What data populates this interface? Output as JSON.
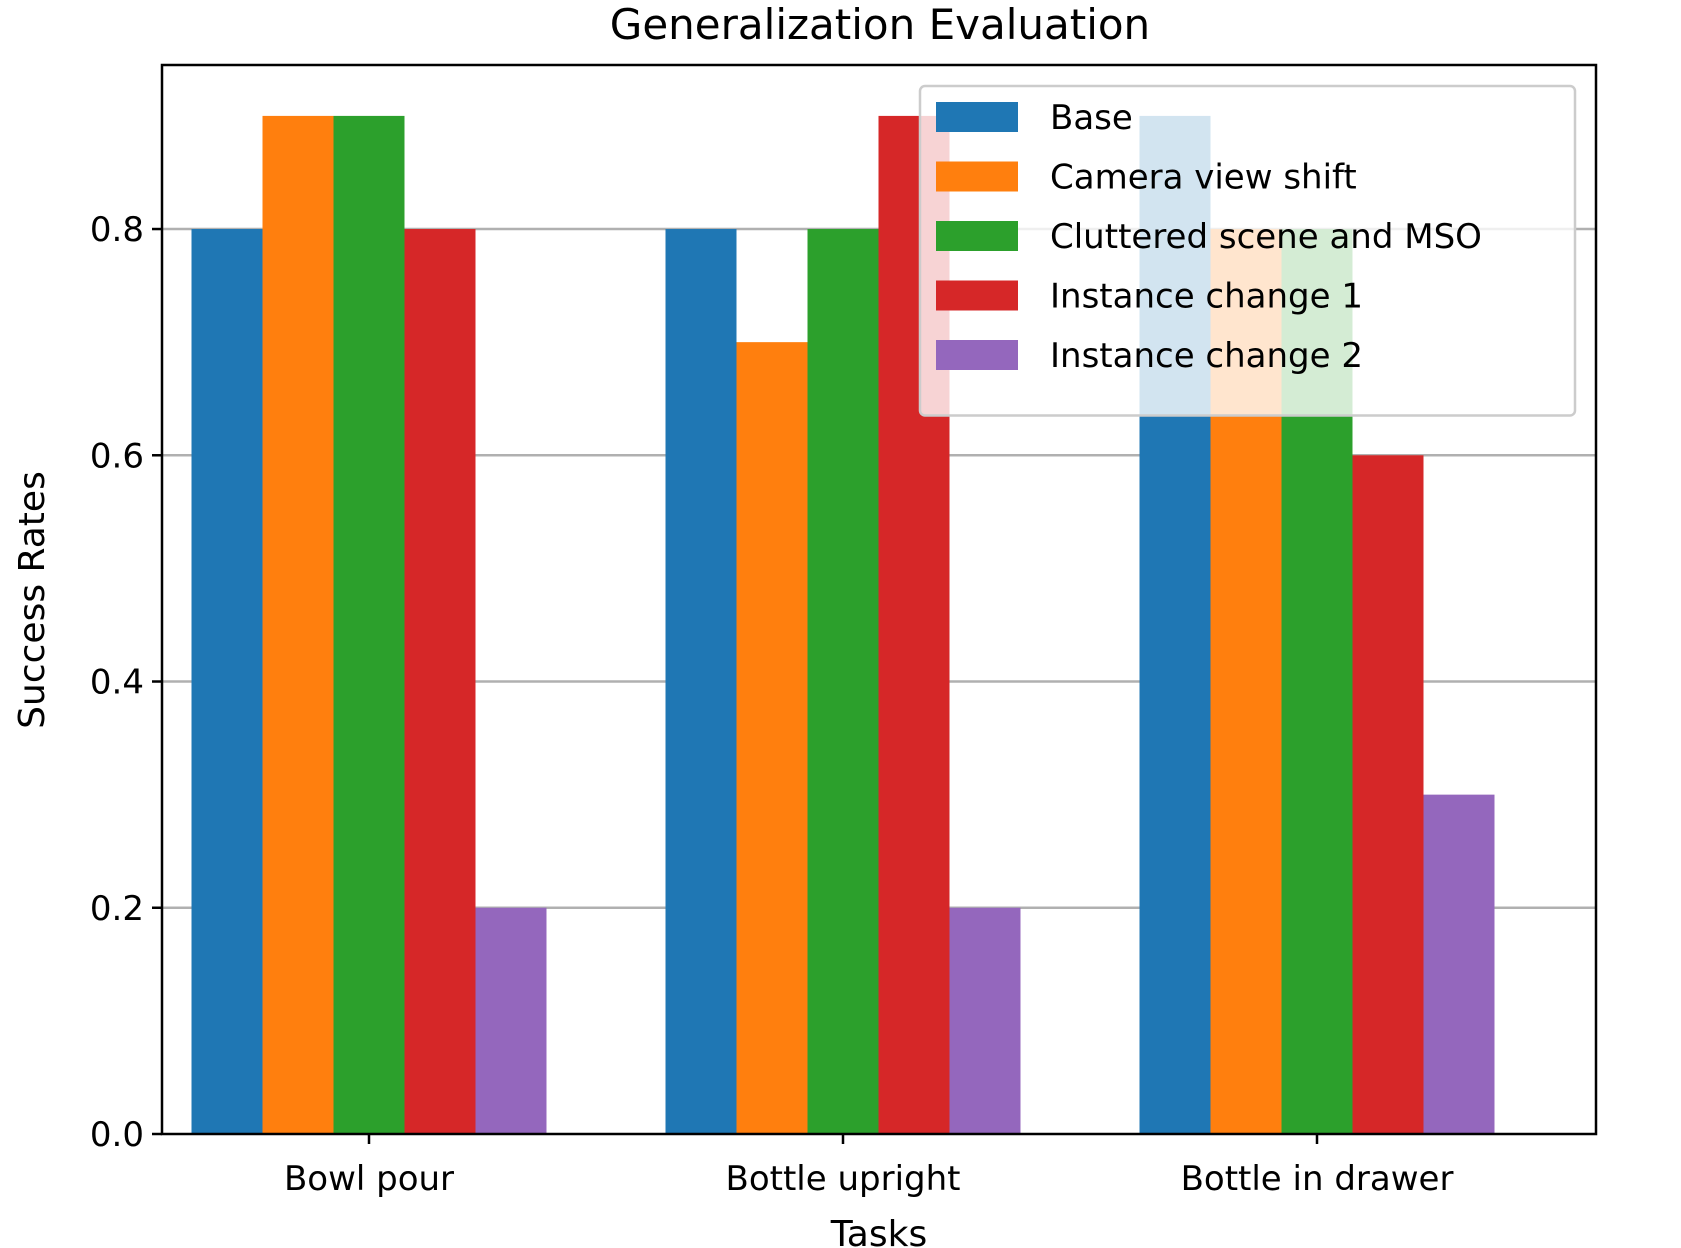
{
  "chart_data": {
    "type": "bar",
    "title": "Generalization Evaluation",
    "xlabel": "Tasks",
    "ylabel": "Success Rates",
    "categories": [
      "Bowl pour",
      "Bottle upright",
      "Bottle in drawer"
    ],
    "ylim": [
      0,
      0.945
    ],
    "yticks": [
      0.0,
      0.2,
      0.4,
      0.6,
      0.8
    ],
    "ytick_labels": [
      "0.0",
      "0.2",
      "0.4",
      "0.6",
      "0.8"
    ],
    "grid": "horizontal",
    "legend_position": "upper-right",
    "series": [
      {
        "name": "Base",
        "color": "#1f77b4",
        "values": [
          0.8,
          0.8,
          0.9
        ]
      },
      {
        "name": "Camera view shift",
        "color": "#ff7f0e",
        "values": [
          0.9,
          0.7,
          0.8
        ]
      },
      {
        "name": "Cluttered scene and MSO",
        "color": "#2ca02c",
        "values": [
          0.9,
          0.8,
          0.8
        ]
      },
      {
        "name": "Instance change 1",
        "color": "#d62728",
        "values": [
          0.8,
          0.9,
          0.6
        ]
      },
      {
        "name": "Instance change 2",
        "color": "#9467bd",
        "values": [
          0.2,
          0.2,
          0.3
        ]
      }
    ]
  }
}
